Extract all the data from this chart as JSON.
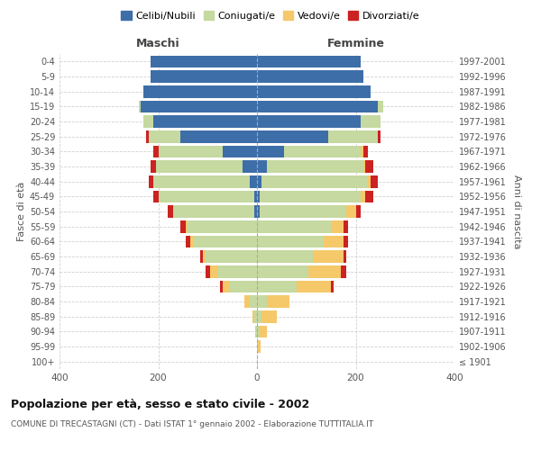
{
  "age_groups": [
    "100+",
    "95-99",
    "90-94",
    "85-89",
    "80-84",
    "75-79",
    "70-74",
    "65-69",
    "60-64",
    "55-59",
    "50-54",
    "45-49",
    "40-44",
    "35-39",
    "30-34",
    "25-29",
    "20-24",
    "15-19",
    "10-14",
    "5-9",
    "0-4"
  ],
  "birth_years": [
    "≤ 1901",
    "1902-1906",
    "1907-1911",
    "1912-1916",
    "1917-1921",
    "1922-1926",
    "1927-1931",
    "1932-1936",
    "1937-1941",
    "1942-1946",
    "1947-1951",
    "1952-1956",
    "1957-1961",
    "1962-1966",
    "1967-1971",
    "1972-1976",
    "1977-1981",
    "1982-1986",
    "1987-1991",
    "1992-1996",
    "1997-2001"
  ],
  "males": {
    "celibe": [
      0,
      0,
      0,
      0,
      0,
      0,
      0,
      0,
      0,
      0,
      5,
      5,
      15,
      30,
      70,
      155,
      210,
      235,
      230,
      215,
      215
    ],
    "coniugato": [
      0,
      0,
      2,
      5,
      15,
      55,
      80,
      105,
      130,
      140,
      165,
      195,
      195,
      175,
      130,
      65,
      20,
      5,
      0,
      0,
      0
    ],
    "vedovo": [
      0,
      0,
      2,
      5,
      10,
      15,
      15,
      5,
      5,
      5,
      0,
      0,
      0,
      0,
      0,
      0,
      0,
      0,
      0,
      0,
      0
    ],
    "divorziato": [
      0,
      0,
      0,
      0,
      0,
      5,
      10,
      5,
      10,
      10,
      10,
      10,
      10,
      10,
      10,
      5,
      0,
      0,
      0,
      0,
      0
    ]
  },
  "females": {
    "nubile": [
      0,
      0,
      0,
      0,
      0,
      0,
      0,
      0,
      0,
      0,
      5,
      5,
      10,
      20,
      55,
      145,
      210,
      245,
      230,
      215,
      210
    ],
    "coniugata": [
      0,
      2,
      5,
      10,
      20,
      80,
      105,
      115,
      135,
      150,
      175,
      205,
      215,
      195,
      155,
      100,
      40,
      10,
      0,
      0,
      0
    ],
    "vedova": [
      0,
      5,
      15,
      30,
      45,
      70,
      65,
      60,
      40,
      25,
      20,
      10,
      5,
      5,
      5,
      0,
      0,
      0,
      0,
      0,
      0
    ],
    "divorziata": [
      0,
      0,
      0,
      0,
      0,
      5,
      10,
      5,
      10,
      10,
      10,
      15,
      15,
      15,
      10,
      5,
      0,
      0,
      0,
      0,
      0
    ]
  },
  "colors": {
    "celibe": "#3d6ea8",
    "coniugato": "#c5d9a0",
    "vedovo": "#f5c869",
    "divorziato": "#cc2222"
  },
  "legend_labels": [
    "Celibi/Nubili",
    "Coniugati/e",
    "Vedovi/e",
    "Divorziati/e"
  ],
  "title1": "Popolazione per età, sesso e stato civile - 2002",
  "title2": "COMUNE DI TRECASTAGNI (CT) - Dati ISTAT 1° gennaio 2002 - Elaborazione TUTTITALIA.IT",
  "xlabel_left": "Maschi",
  "xlabel_right": "Femmine",
  "ylabel_left": "Fasce di età",
  "ylabel_right": "Anni di nascita",
  "xlim": 400,
  "bg_color": "#ffffff",
  "grid_color": "#cccccc"
}
